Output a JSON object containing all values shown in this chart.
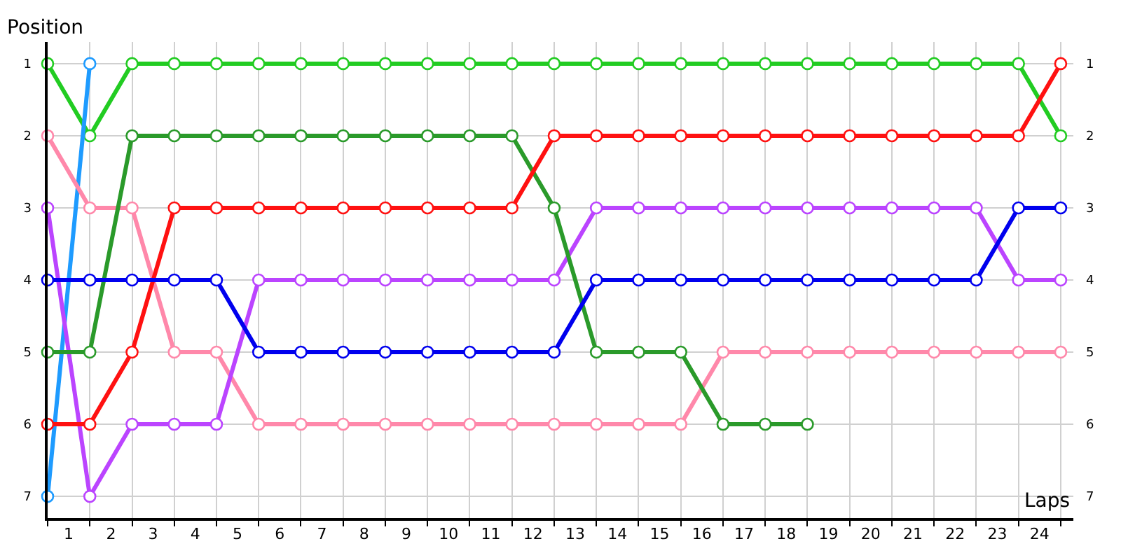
{
  "chart_data": {
    "type": "line",
    "xlabel": "Laps",
    "ylabel": "Position",
    "x": [
      0,
      1,
      2,
      3,
      4,
      5,
      6,
      7,
      8,
      9,
      10,
      11,
      12,
      13,
      14,
      15,
      16,
      17,
      18,
      19,
      20,
      21,
      22,
      23,
      24
    ],
    "series": [
      {
        "color": "#22cc22",
        "values": [
          1,
          2,
          1,
          1,
          1,
          1,
          1,
          1,
          1,
          1,
          1,
          1,
          1,
          1,
          1,
          1,
          1,
          1,
          1,
          1,
          1,
          1,
          1,
          1,
          2
        ]
      },
      {
        "color": "#1e9bff",
        "values": [
          7,
          1,
          null,
          null,
          null,
          null,
          null,
          null,
          null,
          null,
          null,
          null,
          null,
          null,
          null,
          null,
          null,
          null,
          null,
          null,
          null,
          null,
          null,
          null,
          null
        ]
      },
      {
        "color": "#ff88aa",
        "values": [
          2,
          3,
          3,
          5,
          5,
          6,
          6,
          6,
          6,
          6,
          6,
          6,
          6,
          6,
          6,
          6,
          5,
          5,
          5,
          5,
          5,
          5,
          5,
          5,
          5
        ]
      },
      {
        "color": "#bb44ff",
        "values": [
          3,
          7,
          6,
          6,
          6,
          4,
          4,
          4,
          4,
          4,
          4,
          4,
          4,
          3,
          3,
          3,
          3,
          3,
          3,
          3,
          3,
          3,
          3,
          4,
          4
        ]
      },
      {
        "color": "#2a9a2a",
        "values": [
          5,
          5,
          2,
          2,
          2,
          2,
          2,
          2,
          2,
          2,
          2,
          2,
          3,
          5,
          5,
          5,
          6,
          6,
          6,
          null,
          null,
          null,
          null,
          null,
          null
        ]
      },
      {
        "color": "#ff1111",
        "values": [
          6,
          6,
          5,
          3,
          3,
          3,
          3,
          3,
          3,
          3,
          3,
          3,
          2,
          2,
          2,
          2,
          2,
          2,
          2,
          2,
          2,
          2,
          2,
          2,
          1
        ]
      },
      {
        "color": "#0000ee",
        "values": [
          4,
          4,
          4,
          4,
          4,
          5,
          5,
          5,
          5,
          5,
          5,
          5,
          5,
          4,
          4,
          4,
          4,
          4,
          4,
          4,
          4,
          4,
          4,
          3,
          3
        ]
      }
    ],
    "xlim": [
      0,
      24.3
    ],
    "xticks": [
      {
        "value": 0.5,
        "label": "1"
      },
      {
        "value": 1.5,
        "label": "2"
      },
      {
        "value": 2.5,
        "label": "3"
      },
      {
        "value": 3.5,
        "label": "4"
      },
      {
        "value": 4.5,
        "label": "5"
      },
      {
        "value": 5.5,
        "label": "6"
      },
      {
        "value": 6.5,
        "label": "7"
      },
      {
        "value": 7.5,
        "label": "8"
      },
      {
        "value": 8.5,
        "label": "9"
      },
      {
        "value": 9.5,
        "label": "10"
      },
      {
        "value": 10.5,
        "label": "11"
      },
      {
        "value": 11.5,
        "label": "12"
      },
      {
        "value": 12.5,
        "label": "13"
      },
      {
        "value": 13.5,
        "label": "14"
      },
      {
        "value": 14.5,
        "label": "15"
      },
      {
        "value": 15.5,
        "label": "16"
      },
      {
        "value": 16.5,
        "label": "17"
      },
      {
        "value": 17.5,
        "label": "18"
      },
      {
        "value": 18.5,
        "label": "19"
      },
      {
        "value": 19.5,
        "label": "20"
      },
      {
        "value": 20.5,
        "label": "21"
      },
      {
        "value": 21.5,
        "label": "22"
      },
      {
        "value": 22.5,
        "label": "23"
      },
      {
        "value": 23.5,
        "label": "24"
      }
    ],
    "ylim": [
      7.3,
      0.7
    ],
    "yticks": [
      1,
      2,
      3,
      4,
      5,
      6,
      7
    ],
    "y2lim": [
      7.3,
      0.7
    ],
    "y2ticks": [
      1,
      2,
      3,
      4,
      5,
      6,
      7
    ],
    "grid": true,
    "marker": "circle",
    "line_style": "solid"
  }
}
